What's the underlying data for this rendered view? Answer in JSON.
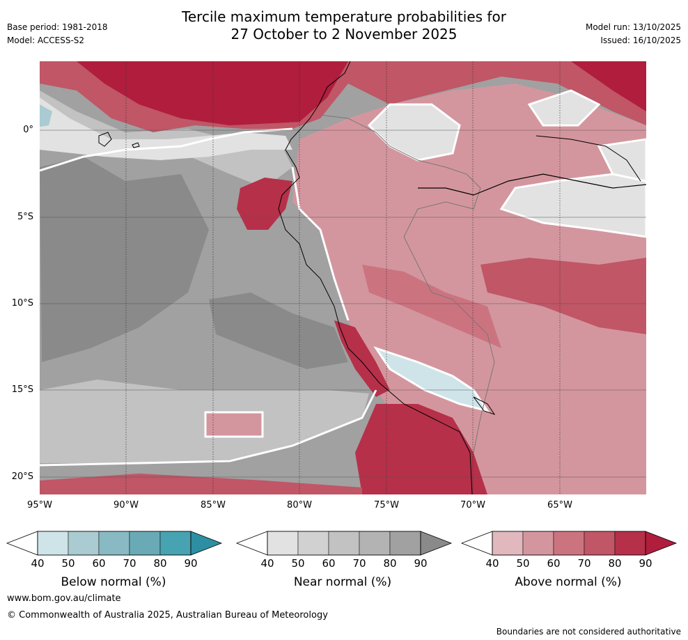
{
  "header": {
    "title_line1": "Tercile maximum temperature probabilities for",
    "title_line2": "27 October to 2 November 2025",
    "base_period": "Base period: 1981-2018",
    "model": "Model: ACCESS-S2",
    "model_run": "Model run: 13/10/2025",
    "issued": "Issued: 16/10/2025"
  },
  "map": {
    "lat_labels": [
      "0°",
      "5°S",
      "10°S",
      "15°S",
      "20°S"
    ],
    "lon_labels": [
      "95°W",
      "90°W",
      "85°W",
      "80°W",
      "75°W",
      "70°W",
      "65°W"
    ]
  },
  "colorbars": [
    {
      "title": "Below normal (%)",
      "ticks": [
        "40",
        "50",
        "60",
        "70",
        "80",
        "90"
      ],
      "colors": [
        "#cfe4e8",
        "#a9cbd1",
        "#89b9c2",
        "#6aaab6",
        "#47a2b1",
        "#2e8fa3"
      ]
    },
    {
      "title": "Near normal (%)",
      "ticks": [
        "40",
        "50",
        "60",
        "70",
        "80",
        "90"
      ],
      "colors": [
        "#e2e2e2",
        "#d1d1d1",
        "#c2c2c2",
        "#b3b3b3",
        "#a1a1a1",
        "#8a8a8a"
      ]
    },
    {
      "title": "Above normal (%)",
      "ticks": [
        "40",
        "50",
        "60",
        "70",
        "80",
        "90"
      ],
      "colors": [
        "#e0b8bd",
        "#d4969e",
        "#cb7480",
        "#c05666",
        "#b6304a",
        "#b01d3d"
      ]
    }
  ],
  "footer": {
    "website": "www.bom.gov.au/climate",
    "copyright": "© Commonwealth of Australia 2025, Australian Bureau of Meteorology",
    "disclaimer": "Boundaries are not considered authoritative"
  }
}
